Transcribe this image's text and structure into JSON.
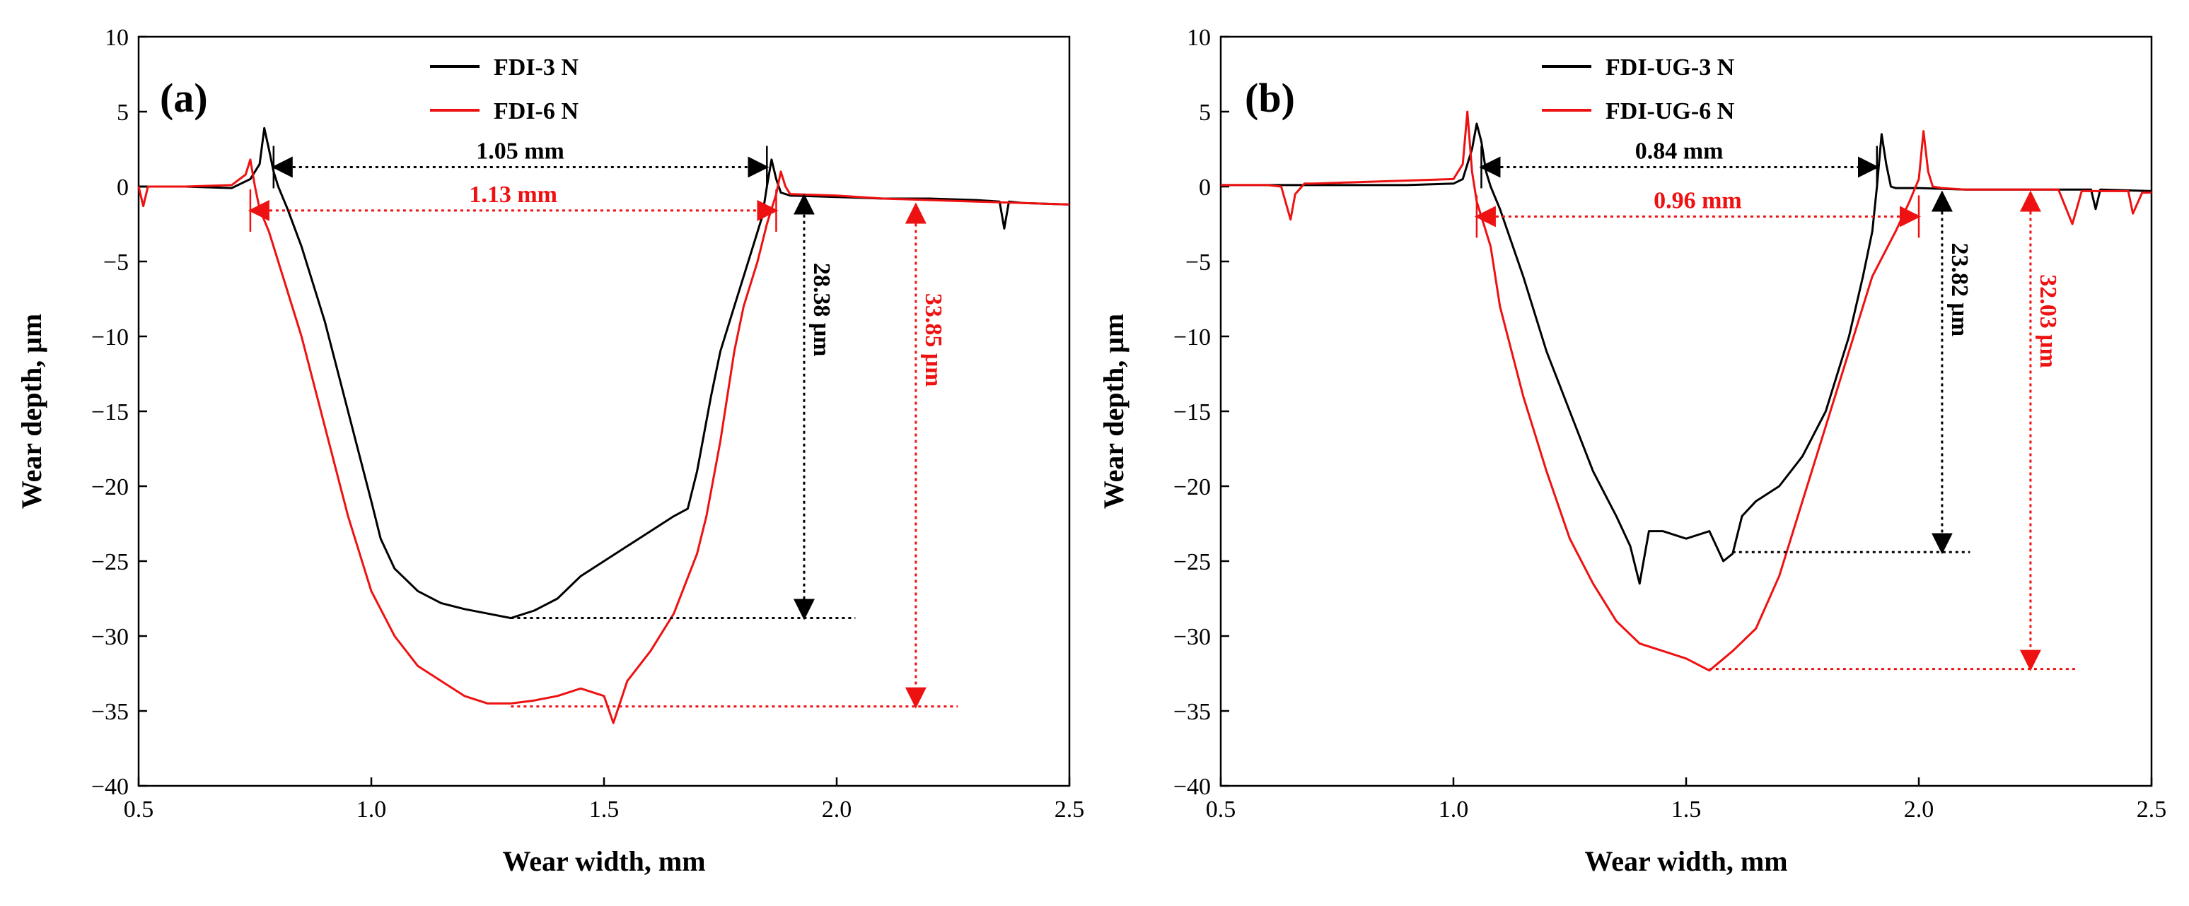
{
  "chart_data": [
    {
      "type": "line",
      "panel_label": "(a)",
      "xlabel": "Wear width, mm",
      "ylabel": "Wear depth, μm",
      "xlim": [
        0.5,
        2.5
      ],
      "ylim": [
        -40,
        10
      ],
      "x_ticks": [
        "0.5",
        "1.0",
        "1.5",
        "2.0",
        "2.5"
      ],
      "y_ticks": [
        "10",
        "5",
        "0",
        "−5",
        "−10",
        "−15",
        "−20",
        "−25",
        "−30",
        "−35",
        "−40"
      ],
      "legend_position": "top-center",
      "series": [
        {
          "name": "FDI-3 N",
          "color": "#000000",
          "x": [
            0.5,
            0.6,
            0.7,
            0.74,
            0.76,
            0.77,
            0.78,
            0.79,
            0.8,
            0.82,
            0.85,
            0.9,
            0.95,
            1.0,
            1.02,
            1.05,
            1.1,
            1.15,
            1.2,
            1.25,
            1.3,
            1.35,
            1.4,
            1.45,
            1.5,
            1.55,
            1.6,
            1.65,
            1.68,
            1.7,
            1.73,
            1.75,
            1.78,
            1.8,
            1.82,
            1.84,
            1.85,
            1.86,
            1.87,
            1.88,
            1.9,
            2.0,
            2.1,
            2.2,
            2.3,
            2.35,
            2.36,
            2.37,
            2.4,
            2.5
          ],
          "y": [
            0.0,
            0.0,
            -0.1,
            0.5,
            1.5,
            3.9,
            2.5,
            1.0,
            0.0,
            -1.5,
            -4.0,
            -9.0,
            -15.0,
            -21.0,
            -23.5,
            -25.5,
            -27.0,
            -27.8,
            -28.2,
            -28.5,
            -28.8,
            -28.3,
            -27.5,
            -26.0,
            -25.0,
            -24.0,
            -23.0,
            -22.0,
            -21.5,
            -19.0,
            -14.0,
            -11.0,
            -8.0,
            -6.0,
            -4.0,
            -2.0,
            0.0,
            1.8,
            0.5,
            -0.4,
            -0.6,
            -0.7,
            -0.8,
            -0.8,
            -0.9,
            -1.0,
            -2.8,
            -1.0,
            -1.1,
            -1.2
          ]
        },
        {
          "name": "FDI-6 N",
          "color": "#ee1111",
          "x": [
            0.5,
            0.51,
            0.52,
            0.55,
            0.6,
            0.7,
            0.73,
            0.74,
            0.75,
            0.76,
            0.78,
            0.8,
            0.85,
            0.9,
            0.95,
            1.0,
            1.05,
            1.1,
            1.15,
            1.2,
            1.25,
            1.3,
            1.35,
            1.4,
            1.45,
            1.5,
            1.52,
            1.55,
            1.6,
            1.65,
            1.7,
            1.72,
            1.75,
            1.78,
            1.8,
            1.83,
            1.85,
            1.87,
            1.88,
            1.89,
            1.9,
            2.0,
            2.1,
            2.2,
            2.3,
            2.4,
            2.5
          ],
          "y": [
            0.0,
            -1.3,
            0.0,
            0.0,
            0.0,
            0.1,
            0.8,
            1.8,
            0.0,
            -1.5,
            -3.0,
            -5.0,
            -10.0,
            -16.0,
            -22.0,
            -27.0,
            -30.0,
            -32.0,
            -33.0,
            -34.0,
            -34.5,
            -34.5,
            -34.3,
            -34.0,
            -33.5,
            -34.0,
            -35.8,
            -33.0,
            -31.0,
            -28.5,
            -24.5,
            -22.0,
            -17.0,
            -11.0,
            -8.0,
            -5.0,
            -2.5,
            -0.5,
            1.0,
            0.0,
            -0.5,
            -0.6,
            -0.8,
            -0.9,
            -1.0,
            -1.1,
            -1.2
          ]
        }
      ],
      "annotations": [
        {
          "text": "1.05 mm",
          "color": "#000000",
          "x_from": 0.79,
          "x_to": 1.85,
          "y": 1.3
        },
        {
          "text": "1.13 mm",
          "color": "#ee1111",
          "x_from": 0.74,
          "x_to": 1.87,
          "y": -1.6
        },
        {
          "text": "28.38 μm",
          "color": "#000000",
          "x": 1.93,
          "y_from": -0.6,
          "y_to": -28.8,
          "ref_line": [
            1.3,
            2.04,
            -28.8
          ]
        },
        {
          "text": "33.85 μm",
          "color": "#ee1111",
          "x": 2.17,
          "y_from": -1.2,
          "y_to": -34.7,
          "ref_line": [
            1.3,
            2.26,
            -34.7
          ]
        }
      ]
    },
    {
      "type": "line",
      "panel_label": "(b)",
      "xlabel": "Wear width, mm",
      "ylabel": "Wear depth, μm",
      "xlim": [
        0.5,
        2.5
      ],
      "ylim": [
        -40,
        10
      ],
      "x_ticks": [
        "0.5",
        "1.0",
        "1.5",
        "2.0",
        "2.5"
      ],
      "y_ticks": [
        "10",
        "5",
        "0",
        "−5",
        "−10",
        "−15",
        "−20",
        "−25",
        "−30",
        "−35",
        "−40"
      ],
      "legend_position": "top-center",
      "series": [
        {
          "name": "FDI-UG-3 N",
          "color": "#000000",
          "x": [
            0.5,
            0.9,
            1.0,
            1.02,
            1.04,
            1.05,
            1.06,
            1.07,
            1.08,
            1.1,
            1.15,
            1.2,
            1.25,
            1.3,
            1.35,
            1.38,
            1.4,
            1.42,
            1.45,
            1.5,
            1.55,
            1.58,
            1.6,
            1.62,
            1.65,
            1.7,
            1.75,
            1.8,
            1.85,
            1.88,
            1.9,
            1.91,
            1.92,
            1.93,
            1.94,
            1.95,
            2.0,
            2.1,
            2.2,
            2.3,
            2.37,
            2.38,
            2.39,
            2.5
          ],
          "y": [
            0.1,
            0.1,
            0.2,
            0.5,
            2.5,
            4.2,
            3.0,
            1.0,
            0.0,
            -1.5,
            -6.0,
            -11.0,
            -15.0,
            -19.0,
            -22.0,
            -24.0,
            -26.5,
            -23.0,
            -23.0,
            -23.5,
            -23.0,
            -25.0,
            -24.5,
            -22.0,
            -21.0,
            -20.0,
            -18.0,
            -15.0,
            -10.0,
            -6.0,
            -3.0,
            0.0,
            3.5,
            1.5,
            0.0,
            -0.1,
            -0.1,
            -0.2,
            -0.2,
            -0.2,
            -0.2,
            -1.5,
            -0.2,
            -0.3
          ]
        },
        {
          "name": "FDI-UG-6 N",
          "color": "#ee1111",
          "x": [
            0.5,
            0.6,
            0.63,
            0.65,
            0.66,
            0.68,
            0.7,
            0.8,
            0.9,
            1.0,
            1.02,
            1.03,
            1.04,
            1.05,
            1.06,
            1.08,
            1.1,
            1.15,
            1.2,
            1.25,
            1.3,
            1.35,
            1.4,
            1.45,
            1.5,
            1.55,
            1.6,
            1.65,
            1.7,
            1.75,
            1.8,
            1.85,
            1.9,
            1.95,
            1.98,
            2.0,
            2.01,
            2.02,
            2.03,
            2.05,
            2.1,
            2.2,
            2.3,
            2.33,
            2.35,
            2.37,
            2.4,
            2.45,
            2.46,
            2.48,
            2.5
          ],
          "y": [
            0.1,
            0.1,
            0.0,
            -2.2,
            -0.5,
            0.2,
            0.2,
            0.3,
            0.4,
            0.5,
            1.5,
            5.0,
            1.0,
            -1.0,
            -2.0,
            -4.0,
            -8.0,
            -14.0,
            -19.0,
            -23.5,
            -26.5,
            -29.0,
            -30.5,
            -31.0,
            -31.5,
            -32.3,
            -31.0,
            -29.5,
            -26.0,
            -21.0,
            -16.0,
            -11.0,
            -6.0,
            -3.0,
            -1.0,
            0.5,
            3.7,
            1.0,
            0.0,
            -0.1,
            -0.2,
            -0.2,
            -0.2,
            -2.5,
            -0.3,
            -0.3,
            -0.3,
            -0.3,
            -1.8,
            -0.4,
            -0.4
          ]
        }
      ],
      "annotations": [
        {
          "text": "0.84 mm",
          "color": "#000000",
          "x_from": 1.06,
          "x_to": 1.91,
          "y": 1.3
        },
        {
          "text": "0.96 mm",
          "color": "#ee1111",
          "x_from": 1.05,
          "x_to": 2.0,
          "y": -2.0
        },
        {
          "text": "23.82 μm",
          "color": "#000000",
          "x": 2.05,
          "y_from": -0.4,
          "y_to": -24.4,
          "ref_line": [
            1.6,
            2.11,
            -24.4
          ]
        },
        {
          "text": "32.03 μm",
          "color": "#ee1111",
          "x": 2.24,
          "y_from": -0.4,
          "y_to": -32.2,
          "ref_line": [
            1.55,
            2.34,
            -32.2
          ]
        }
      ]
    }
  ]
}
